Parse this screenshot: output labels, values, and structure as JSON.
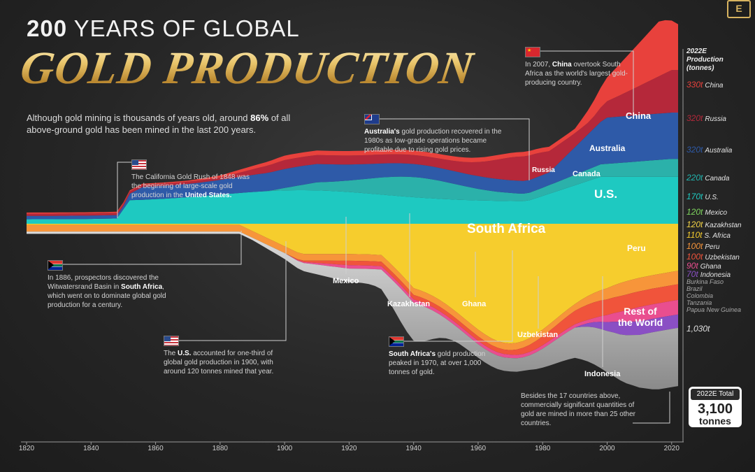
{
  "brand": {
    "logo_letter": "E",
    "accent": "#d7b360"
  },
  "title": {
    "line1_bold": "200",
    "line1_rest": " YEARS OF GLOBAL",
    "line2": "GOLD PRODUCTION"
  },
  "intro": {
    "pre": "Although gold mining is thousands of years old, around ",
    "bold": "86%",
    "post": " of all above-ground gold has been mined in the last 200 years."
  },
  "notes": {
    "gold_rush": {
      "text": "The California Gold Rush of 1848 was the beginning of large-scale gold production in the ",
      "bold": "United States."
    },
    "witwatersrand": {
      "pre": "In 1886, prospectors discovered the Witwatersrand Basin in ",
      "bold": "South Africa",
      "post": ", which went on to dominate global gold production for a century."
    },
    "us_1900": {
      "pre": "The ",
      "bold": "U.S.",
      "post": " accounted for one-third of global gold production in 1900, with around 120 tonnes mined that year."
    },
    "australia": {
      "bold": "Australia's",
      "post": " gold production recovered in the 1980s as low-grade operations became profitable due to rising gold prices."
    },
    "china": {
      "pre": "In 2007, ",
      "bold": "China",
      "post": " overtook South Africa as the world's largest gold-producing country."
    },
    "south_africa_peak": {
      "bold": "South Africa's",
      "post": " gold production peaked in 1970, at over 1,000 tonnes of gold."
    },
    "others": {
      "text": "Besides the 17 countries above, commercially significant quantities of gold are mined in more than 25 other countries."
    }
  },
  "area_labels": {
    "south_africa": "South Africa",
    "us": "U.S.",
    "china": "China",
    "australia": "Australia",
    "canada": "Canada",
    "russia": "Russia",
    "peru": "Peru",
    "rest_of_world_1": "Rest of",
    "rest_of_world_2": "the World",
    "mexico": "Mexico",
    "kazakhstan": "Kazakhstan",
    "ghana": "Ghana",
    "uzbekistan": "Uzbekistan",
    "indonesia": "Indonesia"
  },
  "legend": {
    "heading": [
      "2022E",
      "Production",
      "(tonnes)"
    ],
    "rest_value": "1,030t",
    "small_countries": [
      "Burkina Faso",
      "Brazil",
      "Colombia",
      "Tanzania",
      "Papua New Guinea"
    ]
  },
  "total": {
    "label": "2022E Total",
    "value": "3,100",
    "unit": "tonnes"
  },
  "chart_data": {
    "type": "area",
    "title": "200 YEARS OF GLOBAL GOLD PRODUCTION",
    "xlabel": "",
    "ylabel": "",
    "xlim": [
      1820,
      2022
    ],
    "x_ticks": [
      "1820",
      "1840",
      "1860",
      "1880",
      "1900",
      "1920",
      "1940",
      "1960",
      "1980",
      "2000",
      "2020"
    ],
    "stacked": true,
    "series_2022E": [
      {
        "name": "China",
        "value": 330,
        "label": "330t",
        "color": "#e8413c"
      },
      {
        "name": "Russia",
        "value": 320,
        "label": "320t",
        "color": "#b5283a"
      },
      {
        "name": "Australia",
        "value": 320,
        "label": "320t",
        "color": "#2e5aa8"
      },
      {
        "name": "Canada",
        "value": 220,
        "label": "220t",
        "color": "#21b6b0"
      },
      {
        "name": "U.S.",
        "value": 170,
        "label": "170t",
        "color": "#1ec9c1"
      },
      {
        "name": "Mexico",
        "value": 120,
        "label": "120t",
        "color": "#7fd65f"
      },
      {
        "name": "Kazakhstan",
        "value": 120,
        "label": "120t",
        "color": "#f3d447"
      },
      {
        "name": "S. Africa",
        "value": 110,
        "label": "110t",
        "color": "#f6cd2d"
      },
      {
        "name": "Peru",
        "value": 100,
        "label": "100t",
        "color": "#f7953a"
      },
      {
        "name": "Uzbekistan",
        "value": 100,
        "label": "100t",
        "color": "#f0543b"
      },
      {
        "name": "Ghana",
        "value": 90,
        "label": "90t",
        "color": "#e94e8f"
      },
      {
        "name": "Indonesia",
        "value": 70,
        "label": "70t",
        "color": "#8a4fc4"
      }
    ]
  }
}
